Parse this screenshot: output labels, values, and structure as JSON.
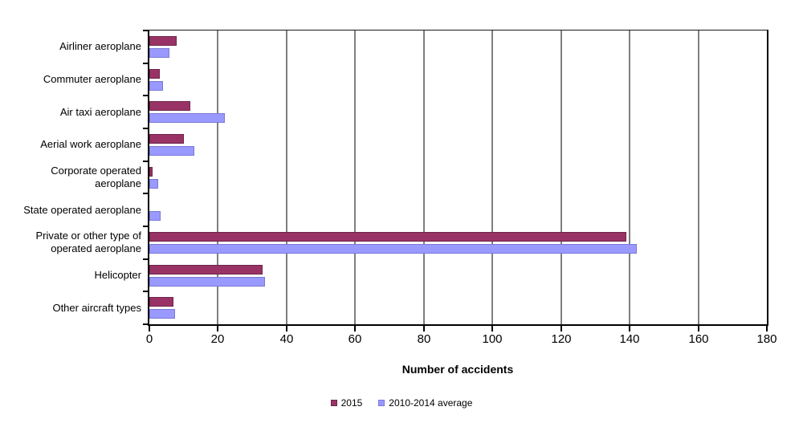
{
  "axis": {
    "x_title": "Number of accidents"
  },
  "chart_data": {
    "type": "bar",
    "orientation": "horizontal",
    "title": "",
    "xlabel": "Number of accidents",
    "ylabel": "",
    "xlim": [
      0,
      180
    ],
    "xticks": [
      0,
      20,
      40,
      60,
      80,
      100,
      120,
      140,
      160,
      180
    ],
    "grid": true,
    "legend_position": "bottom-center",
    "categories": [
      "Airliner aeroplane",
      "Commuter aeroplane",
      "Air taxi aeroplane",
      "Aerial work aeroplane",
      "Corporate operated aeroplane",
      "State operated aeroplane",
      "Private or other type of operated aeroplane",
      "Helicopter",
      "Other aircraft types"
    ],
    "series": [
      {
        "name": "2015",
        "color": "#993366",
        "border_color": "#6E2449",
        "values": [
          8,
          3,
          12,
          10,
          1,
          0,
          139,
          33,
          7
        ]
      },
      {
        "name": "2010-2014 average",
        "color": "#9999FF",
        "border_color": "#7A7AD6",
        "values": [
          5.8,
          4,
          22,
          13,
          2.6,
          3.2,
          142,
          33.6,
          7.6
        ]
      }
    ]
  },
  "colors": {
    "gridline": "#7F7F7F",
    "axis": "#000000",
    "text": "#000000",
    "background": "#FFFFFF"
  }
}
